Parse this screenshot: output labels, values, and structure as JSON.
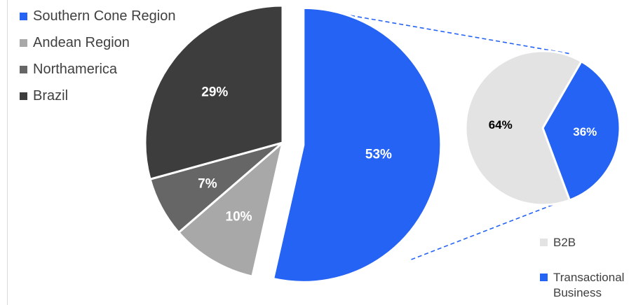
{
  "chart_data": [
    {
      "type": "pie",
      "slices": [
        {
          "name": "Southern Cone Region",
          "value": 53,
          "label": "53%",
          "color": "#2563f5"
        },
        {
          "name": "Andean Region",
          "value": 10,
          "label": "10%",
          "color": "#a8a8a8"
        },
        {
          "name": "Northamerica",
          "value": 7,
          "label": "7%",
          "color": "#666666"
        },
        {
          "name": "Brazil",
          "value": 29,
          "label": "29%",
          "color": "#3d3d3d"
        }
      ],
      "exploded_slice": "Southern Cone Region",
      "legend_position": "top-left"
    },
    {
      "type": "pie",
      "slices": [
        {
          "name": "B2B",
          "value": 64,
          "label": "64%",
          "color": "#e3e3e3"
        },
        {
          "name": "Transactional Business",
          "value": 36,
          "label": "36%",
          "color": "#2563f5"
        }
      ],
      "breakdown_of": "Southern Cone Region",
      "legend_position": "bottom-right"
    }
  ],
  "legend_main": [
    {
      "label": "Southern Cone Region",
      "color": "#2563f5"
    },
    {
      "label": "Andean Region",
      "color": "#a8a8a8"
    },
    {
      "label": "Northamerica",
      "color": "#666666"
    },
    {
      "label": "Brazil",
      "color": "#3d3d3d"
    }
  ],
  "legend_sub": [
    {
      "label": "B2B",
      "color": "#e3e3e3"
    },
    {
      "label": "Transactional Business",
      "color": "#2563f5"
    }
  ],
  "connector_color": "#2563f5"
}
